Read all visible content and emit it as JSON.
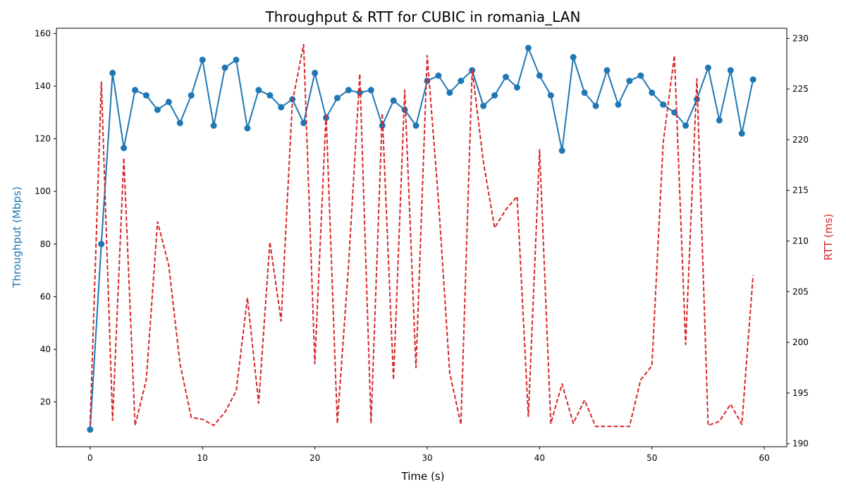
{
  "chart_data": {
    "type": "line",
    "title": "Throughput & RTT for CUBIC in romania_LAN",
    "xlabel": "Time (s)",
    "xlim": [
      -3,
      62
    ],
    "xticks": [
      0,
      10,
      20,
      30,
      40,
      50,
      60
    ],
    "grid": false,
    "axes": {
      "left": {
        "label": "Throughput (Mbps)",
        "color": "#1f77b4",
        "ylim": [
          3,
          162
        ],
        "ticks": [
          20,
          40,
          60,
          80,
          100,
          120,
          140,
          160
        ]
      },
      "right": {
        "label": "RTT (ms)",
        "color": "#d62728",
        "ylim": [
          189.7,
          231
        ],
        "ticks": [
          190,
          195,
          200,
          205,
          210,
          215,
          220,
          225,
          230
        ]
      }
    },
    "x": [
      0,
      1,
      2,
      3,
      4,
      5,
      6,
      7,
      8,
      9,
      10,
      11,
      12,
      13,
      14,
      15,
      16,
      17,
      18,
      19,
      20,
      21,
      22,
      23,
      24,
      25,
      26,
      27,
      28,
      29,
      30,
      31,
      32,
      33,
      34,
      35,
      36,
      37,
      38,
      39,
      40,
      41,
      42,
      43,
      44,
      45,
      46,
      47,
      48,
      49,
      50,
      51,
      52,
      53,
      54,
      55,
      56,
      57,
      58,
      59
    ],
    "series": [
      {
        "name": "Throughput (Mbps)",
        "axis": "left",
        "style": "solid-marker",
        "color": "#1f77b4",
        "values": [
          9.5,
          80,
          145,
          116.5,
          138.5,
          136.5,
          131,
          134,
          126,
          136.5,
          150,
          125,
          147,
          150,
          124,
          138.5,
          136.5,
          132,
          135,
          126,
          145,
          128,
          135.5,
          138.5,
          137.5,
          138.5,
          125,
          134.5,
          131,
          125,
          142,
          144,
          137.5,
          142,
          146,
          132.5,
          136.5,
          143.5,
          139.5,
          154.5,
          144,
          136.5,
          115.5,
          151,
          137.5,
          132.5,
          146,
          133,
          142,
          144,
          137.5,
          133,
          130,
          125,
          135,
          147,
          127,
          146,
          122,
          142.5
        ]
      },
      {
        "name": "RTT (ms)",
        "axis": "right",
        "style": "dashed",
        "color": "#d62728",
        "values": [
          191.8,
          225.7,
          192.3,
          218.2,
          191.8,
          196.3,
          211.9,
          207.6,
          197.9,
          192.6,
          192.4,
          191.8,
          193.1,
          195.2,
          204.4,
          194,
          209.9,
          202.1,
          223.7,
          229.4,
          197.9,
          222.6,
          192,
          207.6,
          226.5,
          192,
          222.6,
          196.3,
          224.9,
          197.5,
          228.3,
          214,
          197,
          191.9,
          226.9,
          217.8,
          211.3,
          213.1,
          214.4,
          192.7,
          219,
          192,
          195.9,
          192,
          194.3,
          191.7,
          191.7,
          191.7,
          191.7,
          196.3,
          197.7,
          219.7,
          228.3,
          199.8,
          226,
          191.8,
          192.2,
          193.9,
          191.9,
          206.6
        ]
      }
    ]
  }
}
